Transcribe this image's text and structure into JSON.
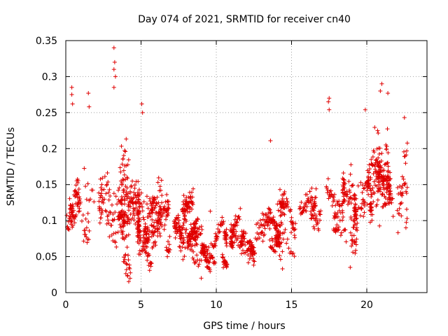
{
  "chart_data": {
    "type": "scatter",
    "title": "Day 074 of 2021, SRMTID for receiver cn40",
    "xlabel": "GPS time / hours",
    "ylabel": "SRMTID / TECUs",
    "xlim": [
      0,
      24
    ],
    "ylim": [
      0,
      0.35
    ],
    "xticks": [
      0,
      5,
      10,
      15,
      20
    ],
    "xtick_labels": [
      "0",
      "5",
      "10",
      "15",
      "20"
    ],
    "yticks": [
      0,
      0.05,
      0.1,
      0.15,
      0.2,
      0.25,
      0.3,
      0.35
    ],
    "ytick_labels": [
      "0",
      "0.05",
      "0.1",
      "0.15",
      "0.2",
      "0.25",
      "0.3",
      "0.35"
    ],
    "grid": true,
    "marker": "+",
    "color": "#e00000",
    "series": [
      {
        "name": "SRMTID",
        "description": "Approximate envelope of the dense scatter (mean level, spread) by GPS hour; individual points estimated.",
        "profile_hours": [
          0,
          1,
          2,
          3,
          4,
          5,
          6,
          7,
          8,
          9,
          10,
          11,
          12,
          13,
          14,
          15,
          16,
          17,
          18,
          19,
          20,
          21,
          22,
          22.7
        ],
        "profile_mean": [
          0.1,
          0.12,
          0.13,
          0.11,
          0.13,
          0.11,
          0.12,
          0.11,
          0.1,
          0.05,
          0.06,
          0.07,
          0.07,
          0.08,
          0.1,
          0.12,
          0.12,
          0.12,
          0.11,
          0.13,
          0.14,
          0.17,
          0.15,
          0.13
        ],
        "profile_spread": [
          0.03,
          0.04,
          0.05,
          0.06,
          0.05,
          0.05,
          0.04,
          0.04,
          0.03,
          0.02,
          0.02,
          0.02,
          0.02,
          0.03,
          0.03,
          0.03,
          0.03,
          0.03,
          0.04,
          0.05,
          0.05,
          0.06,
          0.05,
          0.04
        ],
        "notable_points": [
          {
            "x": 0.4,
            "y": 0.285
          },
          {
            "x": 0.4,
            "y": 0.275
          },
          {
            "x": 0.45,
            "y": 0.262
          },
          {
            "x": 1.5,
            "y": 0.277
          },
          {
            "x": 1.55,
            "y": 0.258
          },
          {
            "x": 3.2,
            "y": 0.34
          },
          {
            "x": 3.25,
            "y": 0.32
          },
          {
            "x": 3.2,
            "y": 0.31
          },
          {
            "x": 3.3,
            "y": 0.3
          },
          {
            "x": 3.2,
            "y": 0.285
          },
          {
            "x": 5.05,
            "y": 0.262
          },
          {
            "x": 5.1,
            "y": 0.25
          },
          {
            "x": 9.0,
            "y": 0.02
          },
          {
            "x": 9.6,
            "y": 0.113
          },
          {
            "x": 14.4,
            "y": 0.033
          },
          {
            "x": 13.6,
            "y": 0.211
          },
          {
            "x": 17.5,
            "y": 0.27
          },
          {
            "x": 17.45,
            "y": 0.265
          },
          {
            "x": 17.5,
            "y": 0.254
          },
          {
            "x": 18.9,
            "y": 0.035
          },
          {
            "x": 19.9,
            "y": 0.254
          },
          {
            "x": 21.0,
            "y": 0.29
          },
          {
            "x": 20.9,
            "y": 0.28
          },
          {
            "x": 21.4,
            "y": 0.277
          },
          {
            "x": 22.5,
            "y": 0.243
          },
          {
            "x": 22.6,
            "y": 0.09
          }
        ],
        "n_points": 1900
      }
    ]
  }
}
